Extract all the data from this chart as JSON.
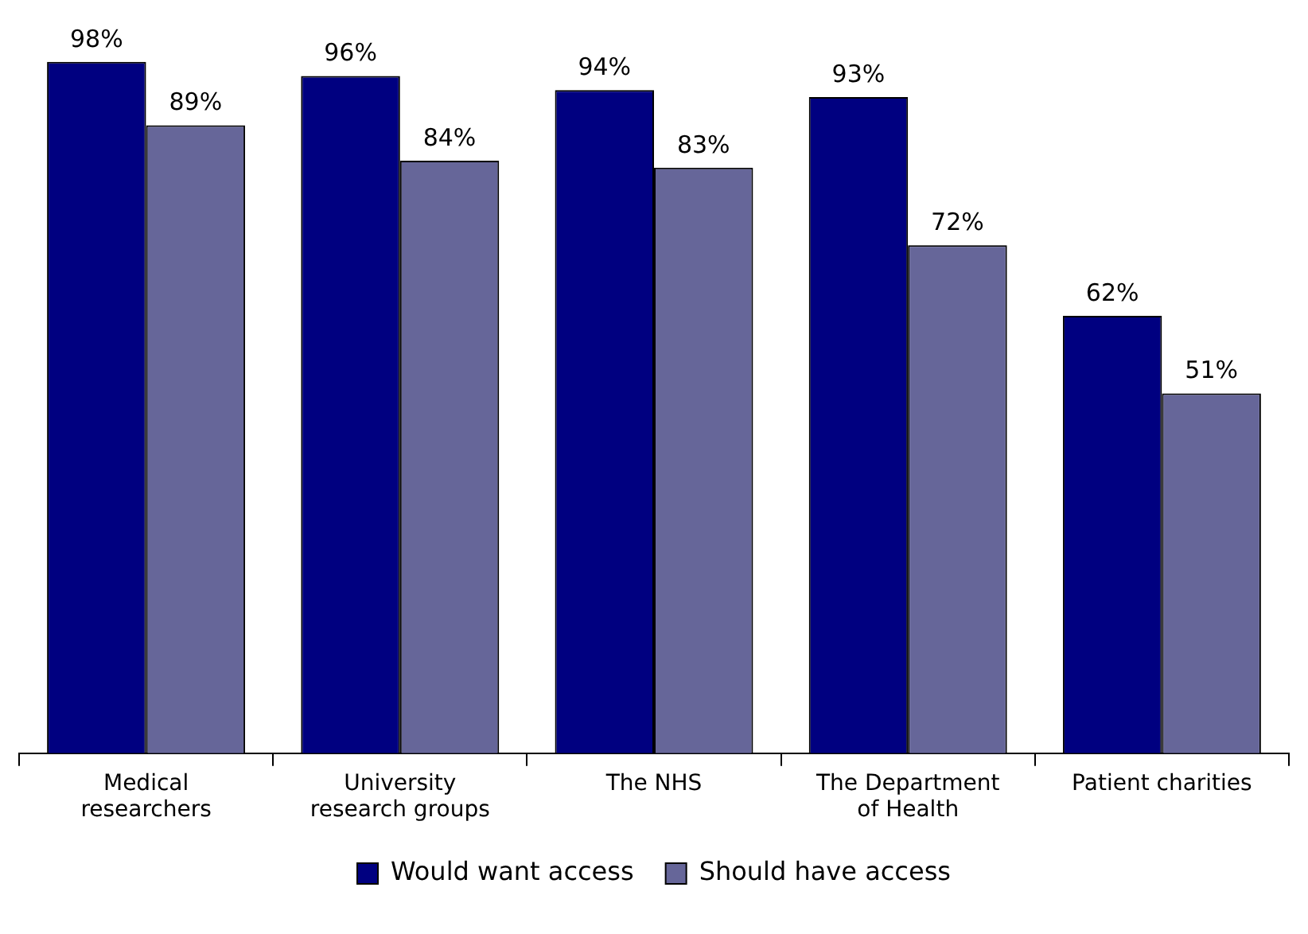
{
  "chart_data": {
    "type": "bar",
    "categories": [
      "Medical researchers",
      "University research groups",
      "The NHS",
      "The Department of Health",
      "Patient charities"
    ],
    "series": [
      {
        "name": "Would want access",
        "color": "#000080",
        "values": [
          98,
          96,
          94,
          93,
          62
        ],
        "value_labels": [
          "98%",
          "96%",
          "94%",
          "93%",
          "62%"
        ]
      },
      {
        "name": "Should have access",
        "color": "#666699",
        "values": [
          89,
          84,
          83,
          72,
          51
        ],
        "value_labels": [
          "89%",
          "84%",
          "83%",
          "72%",
          "51%"
        ]
      }
    ],
    "legend": "bottom",
    "grid": false,
    "tick_labels": "x"
  }
}
